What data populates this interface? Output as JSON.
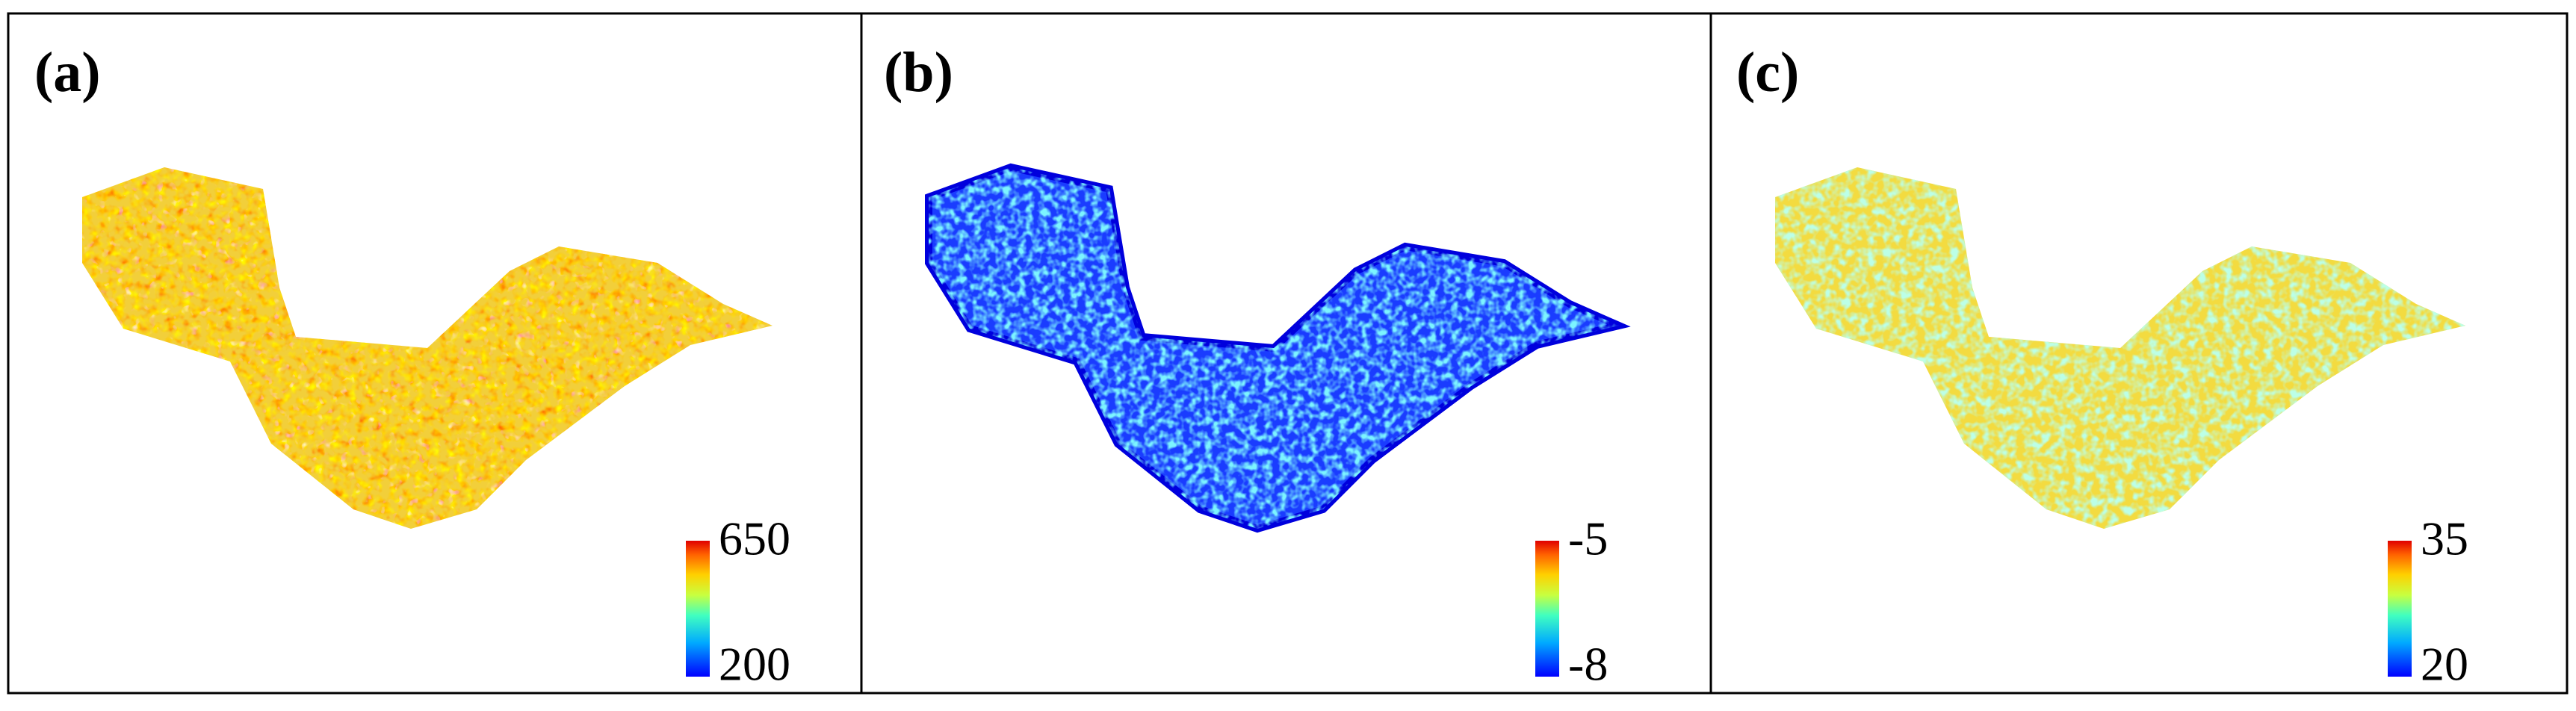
{
  "panels": [
    {
      "label": "(a)",
      "colorbar": {
        "max": 650,
        "min": 200
      }
    },
    {
      "label": "(b)",
      "colorbar": {
        "max": -5,
        "min": -8
      }
    },
    {
      "label": "(c)",
      "colorbar": {
        "max": 35,
        "min": 20
      }
    }
  ]
}
